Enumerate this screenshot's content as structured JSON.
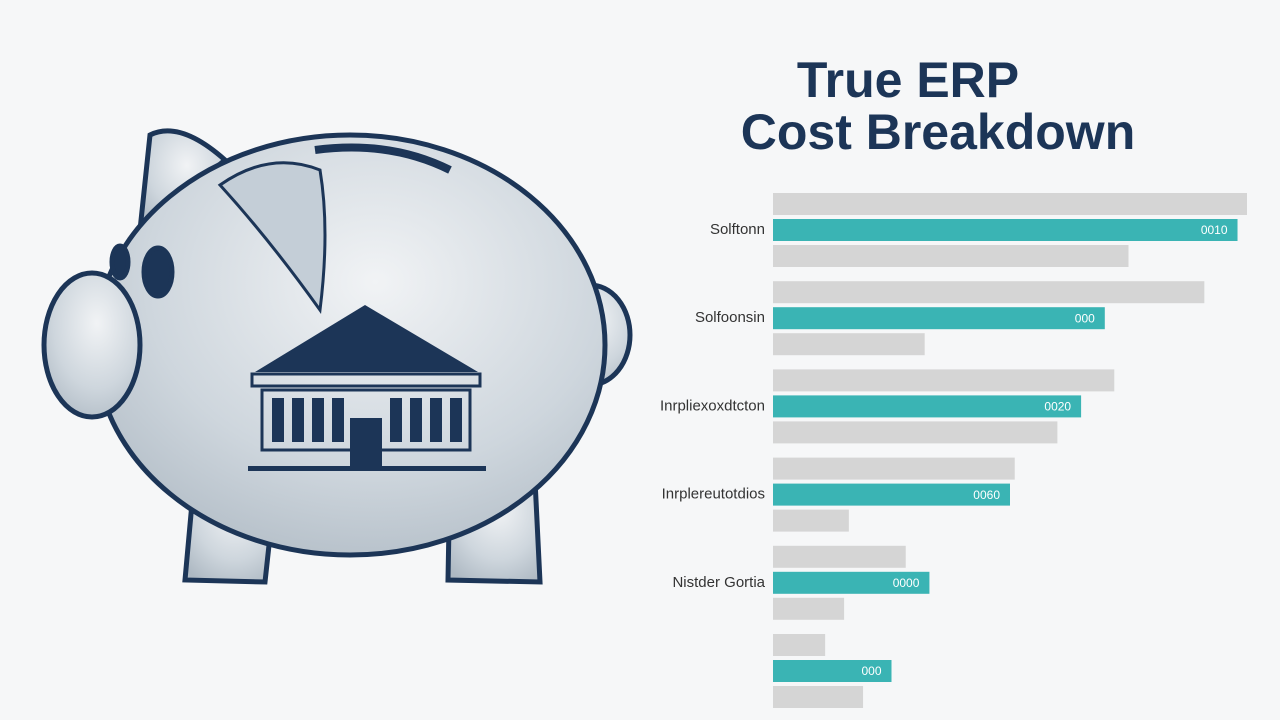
{
  "chart_data": {
    "type": "bar",
    "orientation": "horizontal",
    "title": [
      "True ERP",
      "Cost Breakdown"
    ],
    "categories": [
      "Solftonn",
      "Solfoonsin",
      "Inrpliexoxdtcton",
      "Inrplereutotdios",
      "Nistder Gortia",
      null
    ],
    "series": [
      {
        "color": "#d5d5d5",
        "values": [
          100,
          91,
          72,
          51,
          28,
          11
        ]
      },
      {
        "color": "#3ab4b4",
        "values": [
          98,
          70,
          65,
          50,
          33,
          25
        ]
      },
      {
        "color": "#d5d5d5",
        "values": [
          75,
          32,
          60,
          16,
          15,
          19
        ]
      }
    ],
    "annotations": [
      "0010",
      "000",
      "0020",
      "0060",
      "0000",
      "000"
    ],
    "xlim": [
      0,
      100
    ]
  }
}
